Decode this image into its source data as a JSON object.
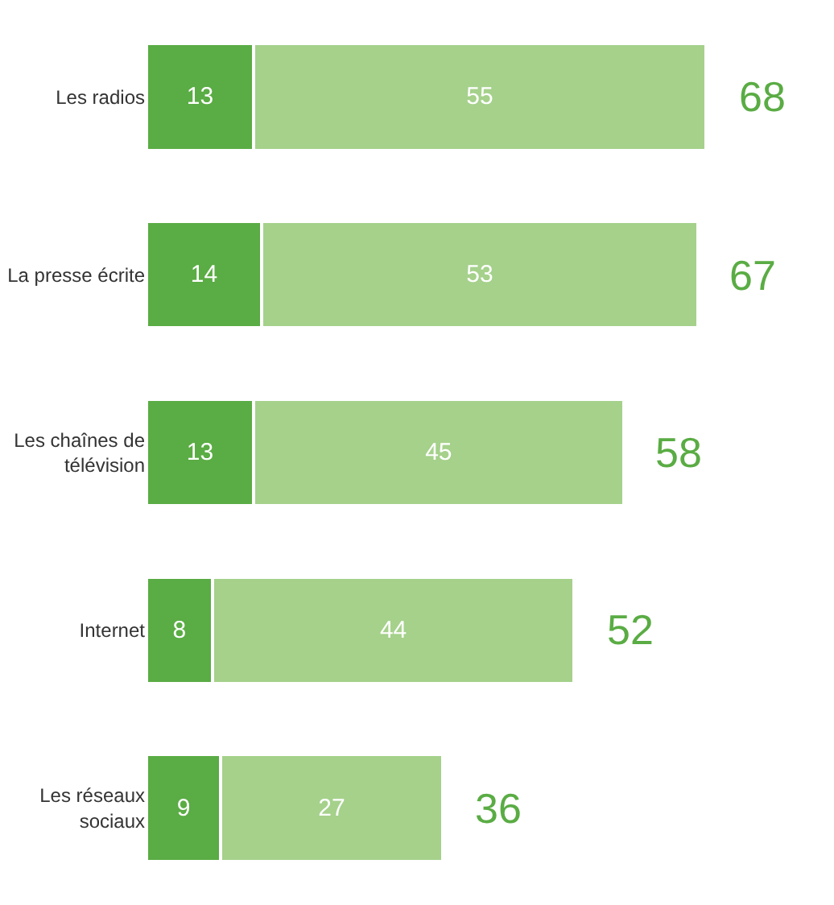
{
  "chart_data": {
    "type": "bar",
    "orientation": "horizontal",
    "stacked": true,
    "categories": [
      "Les radios",
      "La presse écrite",
      "Les chaînes de télévision",
      "Internet",
      "Les réseaux sociaux"
    ],
    "series": [
      {
        "color": "#5aac44",
        "values": [
          13,
          14,
          13,
          8,
          9
        ]
      },
      {
        "color": "#a5d18b",
        "values": [
          55,
          53,
          45,
          44,
          27
        ]
      }
    ],
    "data_labels": true,
    "totals": [
      "68",
      "67",
      "58",
      "52",
      "36"
    ],
    "legend": false,
    "tick_labels": "y"
  }
}
